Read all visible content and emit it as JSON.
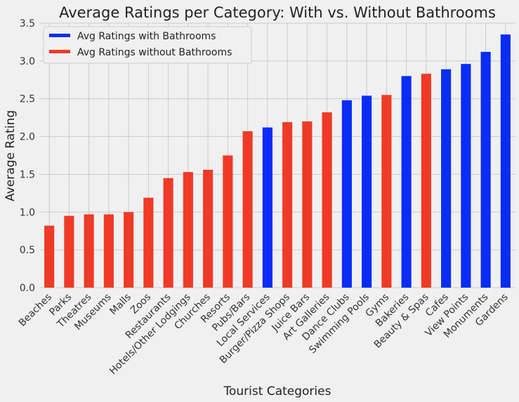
{
  "chart_data": {
    "type": "bar",
    "title": "Average Ratings per Category: With vs. Without Bathrooms",
    "xlabel": "Tourist Categories",
    "ylabel": "Average Rating",
    "ylim": [
      0,
      3.5
    ],
    "yticks": [
      "0.0",
      "0.5",
      "1.0",
      "1.5",
      "2.0",
      "2.5",
      "3.0",
      "3.5"
    ],
    "grid": true,
    "legend_position": "top-left",
    "colors": {
      "with": "#0a2cf5",
      "without": "#ee3a26"
    },
    "legend": [
      {
        "key": "with",
        "label": "Avg Ratings with Bathrooms"
      },
      {
        "key": "without",
        "label": "Avg Ratings without Bathrooms"
      }
    ],
    "categories": [
      "Beaches",
      "Parks",
      "Theatres",
      "Museums",
      "Malls",
      "Zoos",
      "Restaurants",
      "Hotels/Other Lodgings",
      "Churches",
      "Resorts",
      "Pubs/Bars",
      "Local Services",
      "Burger/Pizza Shops",
      "Juice Bars",
      "Art Galleries",
      "Dance Clubs",
      "Swimming Pools",
      "Gyms",
      "Bakeries",
      "Beauty & Spas",
      "Cafes",
      "View Points",
      "Monuments",
      "Gardens"
    ],
    "values": [
      0.82,
      0.95,
      0.97,
      0.97,
      1.0,
      1.19,
      1.45,
      1.53,
      1.56,
      1.75,
      2.07,
      2.12,
      2.19,
      2.2,
      2.32,
      2.48,
      2.54,
      2.55,
      2.8,
      2.83,
      2.89,
      2.96,
      3.12,
      3.35
    ],
    "series_key": [
      "without",
      "without",
      "without",
      "without",
      "without",
      "without",
      "without",
      "without",
      "without",
      "without",
      "without",
      "with",
      "without",
      "without",
      "without",
      "with",
      "with",
      "without",
      "with",
      "without",
      "with",
      "with",
      "with",
      "with"
    ]
  }
}
